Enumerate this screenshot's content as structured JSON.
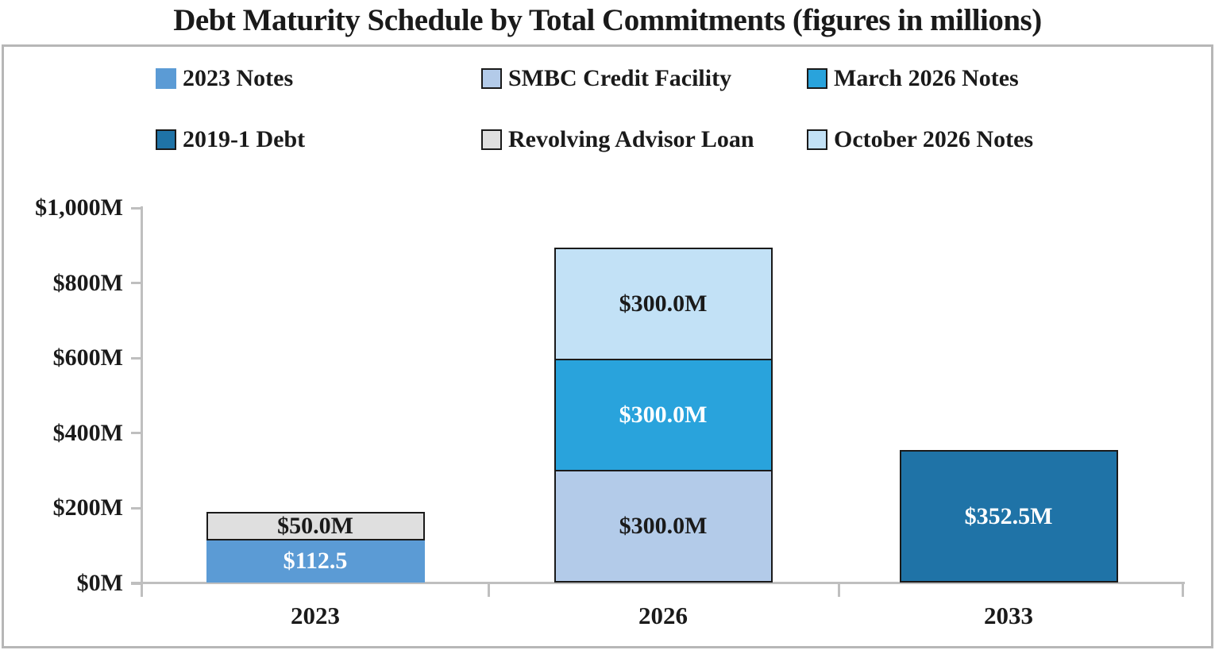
{
  "title": "Debt Maturity Schedule by Total Commitments (figures in millions)",
  "colors": {
    "text": "#1a1a1a",
    "axis": "#bfbfbf",
    "frame_border": "#b7b7b7",
    "segment_border": "#1a1a1a",
    "background": "#ffffff"
  },
  "legend": {
    "rows": [
      [
        {
          "label": "2023 Notes",
          "color": "#5B9BD5",
          "border": false
        },
        {
          "label": "SMBC Credit Facility",
          "color": "#B3CBE9",
          "border": true
        },
        {
          "label": "March 2026 Notes",
          "color": "#29A3DC",
          "border": true
        }
      ],
      [
        {
          "label": "2019-1 Debt",
          "color": "#1F73A7",
          "border": true
        },
        {
          "label": "Revolving Advisor Loan",
          "color": "#DFDFDF",
          "border": true
        },
        {
          "label": "October 2026 Notes",
          "color": "#C2E1F6",
          "border": true
        }
      ]
    ]
  },
  "chart_data": {
    "type": "bar",
    "stacked": true,
    "title": "Debt Maturity Schedule by Total Commitments (figures in millions)",
    "categories": [
      "2023",
      "2026",
      "2033"
    ],
    "series": [
      {
        "name": "2023 Notes",
        "color": "#5B9BD5",
        "border": false,
        "label_color": "#ffffff",
        "values": [
          112.5,
          0,
          0
        ],
        "data_labels": [
          "$112.5",
          "",
          ""
        ]
      },
      {
        "name": "SMBC Credit Facility",
        "color": "#B3CBE9",
        "border": true,
        "label_color": "#1a1a1a",
        "values": [
          0,
          300,
          0
        ],
        "data_labels": [
          "",
          "$300.0M",
          ""
        ]
      },
      {
        "name": "March 2026 Notes",
        "color": "#29A3DC",
        "border": true,
        "label_color": "#ffffff",
        "values": [
          0,
          300,
          0
        ],
        "data_labels": [
          "",
          "$300.0M",
          ""
        ]
      },
      {
        "name": "Revolving Advisor Loan",
        "color": "#DFDFDF",
        "border": true,
        "label_color": "#1a1a1a",
        "values": [
          50,
          0,
          0
        ],
        "data_labels": [
          "$50.0M",
          "",
          ""
        ]
      },
      {
        "name": "October 2026 Notes",
        "color": "#C2E1F6",
        "border": true,
        "label_color": "#1a1a1a",
        "values": [
          0,
          300,
          0
        ],
        "data_labels": [
          "",
          "$300.0M",
          ""
        ]
      },
      {
        "name": "2019-1 Debt",
        "color": "#1F73A7",
        "border": true,
        "label_color": "#ffffff",
        "values": [
          0,
          0,
          352.5
        ],
        "data_labels": [
          "",
          "",
          "$352.5M"
        ]
      }
    ],
    "y_ticks": [
      {
        "value": 0,
        "label": "$0M"
      },
      {
        "value": 200,
        "label": "$200M"
      },
      {
        "value": 400,
        "label": "$400M"
      },
      {
        "value": 600,
        "label": "$600M"
      },
      {
        "value": 800,
        "label": "$800M"
      },
      {
        "value": 1000,
        "label": "$1,000M"
      }
    ],
    "ylim": [
      0,
      1000
    ],
    "xlabel": "",
    "ylabel": "",
    "grid": false,
    "legend_position": "top"
  }
}
